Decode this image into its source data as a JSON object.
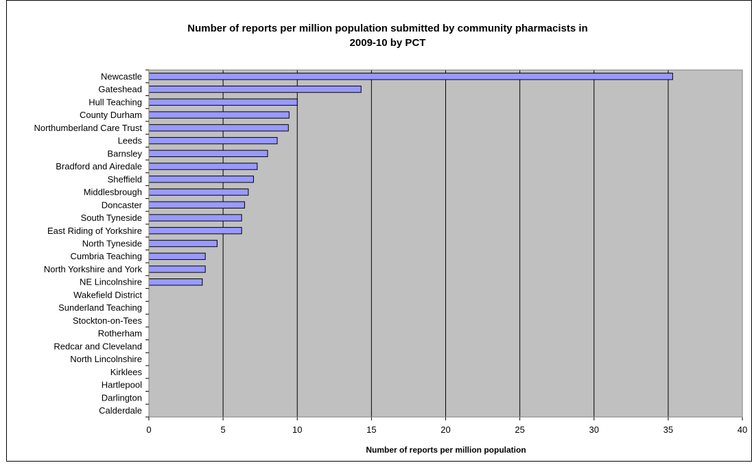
{
  "chart_data": {
    "type": "bar",
    "orientation": "horizontal",
    "title_lines": [
      "Number of reports per million population submitted by community pharmacists in",
      "2009-10 by PCT"
    ],
    "xlabel": "Number of reports per million population",
    "ylabel": "",
    "xlim": [
      0,
      40
    ],
    "xticks": [
      0,
      5,
      10,
      15,
      20,
      25,
      30,
      35,
      40
    ],
    "grid": "vertical",
    "legend": "none",
    "plot_background": "#C0C0C0",
    "bar_color": "#9999FF",
    "bar_border": "#000000",
    "categories": [
      "Newcastle",
      "Gateshead",
      "Hull Teaching",
      "County Durham",
      "Northumberland Care Trust",
      "Leeds",
      "Barnsley",
      "Bradford and Airedale",
      "Sheffield",
      "Middlesbrough",
      "Doncaster",
      "South Tyneside",
      "East Riding of Yorkshire",
      "North Tyneside",
      "Cumbria Teaching",
      "North Yorkshire and York",
      "NE Lincolnshire",
      "Wakefield District",
      "Sunderland Teaching",
      "Stockton-on-Tees",
      "Rotherham",
      "Redcar and Cleveland",
      "North Lincolnshire",
      "Kirklees",
      "Hartlepool",
      "Darlington",
      "Calderdale"
    ],
    "values": [
      35.3,
      14.3,
      10.0,
      9.45,
      9.4,
      8.65,
      8.0,
      7.3,
      7.05,
      6.7,
      6.45,
      6.25,
      6.25,
      4.6,
      3.8,
      3.8,
      3.6,
      0,
      0,
      0,
      0,
      0,
      0,
      0,
      0,
      0,
      0
    ]
  }
}
